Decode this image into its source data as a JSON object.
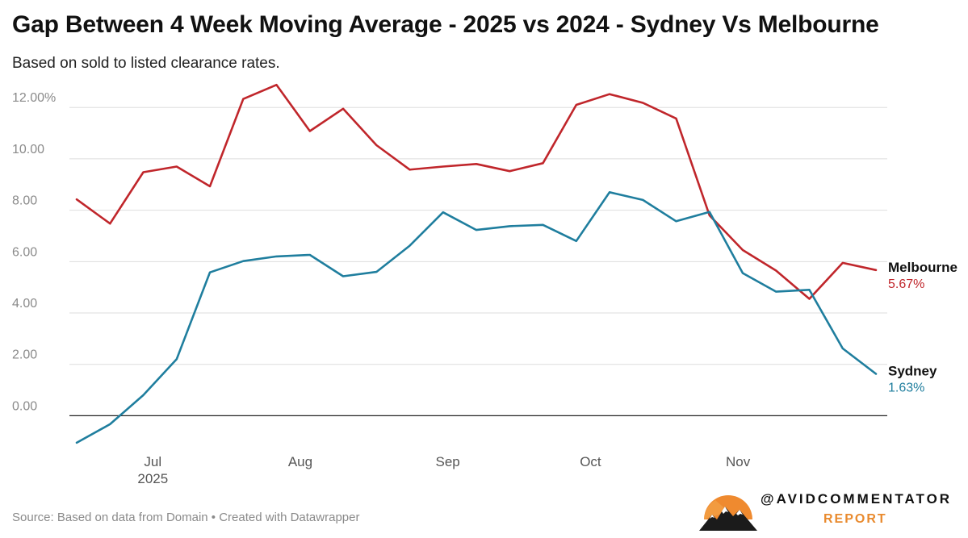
{
  "chart_data": {
    "type": "line",
    "title": "Gap Between 4 Week Moving Average - 2025 vs 2024 - Sydney Vs Melbourne",
    "subtitle": "Based on sold to listed clearance rates.",
    "source": "Source: Based on data from Domain • Created with Datawrapper",
    "x": [
      "2025-06-15",
      "2025-06-22",
      "2025-06-29",
      "2025-07-06",
      "2025-07-13",
      "2025-07-20",
      "2025-07-27",
      "2025-08-03",
      "2025-08-10",
      "2025-08-17",
      "2025-08-24",
      "2025-08-31",
      "2025-09-07",
      "2025-09-14",
      "2025-09-21",
      "2025-09-28",
      "2025-10-05",
      "2025-10-12",
      "2025-10-19",
      "2025-10-26",
      "2025-11-02",
      "2025-11-09",
      "2025-11-16",
      "2025-11-23",
      "2025-11-30"
    ],
    "x_ticks": [
      {
        "date": "2025-07-01",
        "label": "Jul",
        "year": "2025"
      },
      {
        "date": "2025-08-01",
        "label": "Aug",
        "year": ""
      },
      {
        "date": "2025-09-01",
        "label": "Sep",
        "year": ""
      },
      {
        "date": "2025-10-01",
        "label": "Oct",
        "year": ""
      },
      {
        "date": "2025-11-01",
        "label": "Nov",
        "year": ""
      }
    ],
    "y_ticks": [
      {
        "value": 0,
        "label": "0.00"
      },
      {
        "value": 2,
        "label": "2.00"
      },
      {
        "value": 4,
        "label": "4.00"
      },
      {
        "value": 6,
        "label": "6.00"
      },
      {
        "value": 8,
        "label": "8.00"
      },
      {
        "value": 10,
        "label": "10.00"
      },
      {
        "value": 12,
        "label": "12.00%"
      }
    ],
    "ylim": [
      -1.4,
      13.2
    ],
    "grid": true,
    "series": [
      {
        "name": "Melbourne",
        "end_label": "5.67%",
        "color": "#c0262b",
        "values": [
          8.42,
          7.48,
          9.48,
          9.7,
          8.93,
          12.33,
          12.88,
          11.08,
          11.95,
          10.53,
          9.58,
          9.7,
          9.8,
          9.52,
          9.83,
          12.1,
          12.52,
          12.18,
          11.57,
          7.8,
          6.45,
          5.65,
          4.55,
          5.95,
          5.67
        ]
      },
      {
        "name": "Sydney",
        "end_label": "1.63%",
        "color": "#1f7e9e",
        "values": [
          -1.05,
          -0.33,
          0.8,
          2.2,
          5.58,
          6.02,
          6.2,
          6.26,
          5.43,
          5.6,
          6.62,
          7.92,
          7.23,
          7.38,
          7.43,
          6.8,
          8.7,
          8.4,
          7.57,
          7.93,
          5.55,
          4.83,
          4.9,
          2.62,
          1.63
        ]
      }
    ]
  },
  "brand": {
    "handle": "@AVIDCOMMENTATOR",
    "sub": "REPORT"
  }
}
